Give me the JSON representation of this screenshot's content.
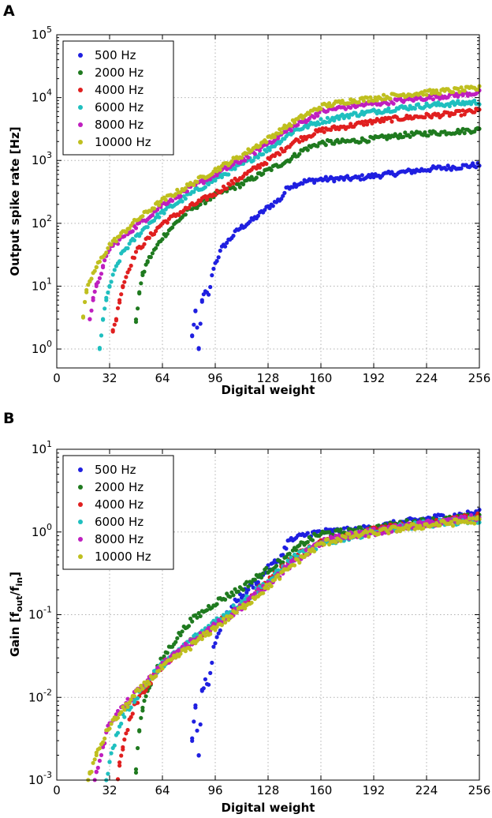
{
  "chart_data": [
    {
      "type": "scatter",
      "panel": "A",
      "xlabel": "Digital weight",
      "ylabel": "Output spike rate [Hz]",
      "yscale": "log",
      "xlim": [
        0,
        256
      ],
      "ylim": [
        0.5,
        100000
      ],
      "xticks": [
        0,
        32,
        64,
        96,
        128,
        160,
        192,
        224,
        256
      ],
      "yticks": [
        1,
        10,
        100,
        1000,
        10000,
        100000
      ],
      "ytick_exponents": [
        "0",
        "1",
        "2",
        "3",
        "4",
        "5"
      ],
      "ytick_base": "10",
      "grid": true,
      "legend": "top-left",
      "series": [
        {
          "name": "500 Hz",
          "color": "#1f1fe0",
          "start": 82,
          "values": [
            [
              82,
              1.6
            ],
            [
              84,
              4
            ],
            [
              86,
              1
            ],
            [
              88,
              6
            ],
            [
              90,
              8
            ],
            [
              92,
              7
            ],
            [
              93,
              10
            ],
            [
              95,
              20
            ],
            [
              100,
              40
            ],
            [
              110,
              80
            ],
            [
              120,
              120
            ],
            [
              128,
              180
            ],
            [
              136,
              250
            ],
            [
              140,
              380
            ],
            [
              150,
              460
            ],
            [
              160,
              500
            ],
            [
              180,
              520
            ],
            [
              190,
              560
            ],
            [
              200,
              600
            ],
            [
              210,
              650
            ],
            [
              220,
              700
            ],
            [
              230,
              750
            ],
            [
              240,
              780
            ],
            [
              256,
              850
            ]
          ]
        },
        {
          "name": "2000 Hz",
          "color": "#1f7a1f",
          "start": 48,
          "values": [
            [
              48,
              2.7
            ],
            [
              50,
              8
            ],
            [
              52,
              15
            ],
            [
              55,
              25
            ],
            [
              60,
              40
            ],
            [
              64,
              60
            ],
            [
              72,
              100
            ],
            [
              80,
              160
            ],
            [
              96,
              280
            ],
            [
              112,
              420
            ],
            [
              128,
              700
            ],
            [
              140,
              1000
            ],
            [
              150,
              1500
            ],
            [
              160,
              1900
            ],
            [
              176,
              2000
            ],
            [
              192,
              2200
            ],
            [
              208,
              2500
            ],
            [
              224,
              2700
            ],
            [
              240,
              2850
            ],
            [
              256,
              3100
            ]
          ]
        },
        {
          "name": "4000 Hz",
          "color": "#e01f1f",
          "start": 34,
          "values": [
            [
              34,
              2
            ],
            [
              36,
              3
            ],
            [
              38,
              6
            ],
            [
              40,
              10
            ],
            [
              44,
              20
            ],
            [
              48,
              35
            ],
            [
              56,
              60
            ],
            [
              64,
              100
            ],
            [
              80,
              180
            ],
            [
              96,
              300
            ],
            [
              112,
              550
            ],
            [
              128,
              1000
            ],
            [
              144,
              2000
            ],
            [
              160,
              3000
            ],
            [
              176,
              3500
            ],
            [
              192,
              4200
            ],
            [
              208,
              4700
            ],
            [
              224,
              5100
            ],
            [
              240,
              5500
            ],
            [
              256,
              6200
            ]
          ]
        },
        {
          "name": "6000 Hz",
          "color": "#1fbfbf",
          "start": 26,
          "values": [
            [
              26,
              1
            ],
            [
              28,
              3
            ],
            [
              30,
              6
            ],
            [
              32,
              10
            ],
            [
              36,
              20
            ],
            [
              40,
              35
            ],
            [
              48,
              60
            ],
            [
              56,
              100
            ],
            [
              64,
              150
            ],
            [
              80,
              280
            ],
            [
              96,
              500
            ],
            [
              112,
              850
            ],
            [
              128,
              1500
            ],
            [
              144,
              3000
            ],
            [
              160,
              4200
            ],
            [
              176,
              5200
            ],
            [
              192,
              6000
            ],
            [
              208,
              6800
            ],
            [
              224,
              7500
            ],
            [
              240,
              8000
            ],
            [
              256,
              8500
            ]
          ]
        },
        {
          "name": "8000 Hz",
          "color": "#bf1fbf",
          "start": 20,
          "values": [
            [
              20,
              3
            ],
            [
              22,
              6
            ],
            [
              24,
              10
            ],
            [
              28,
              20
            ],
            [
              32,
              40
            ],
            [
              40,
              60
            ],
            [
              48,
              90
            ],
            [
              56,
              130
            ],
            [
              64,
              200
            ],
            [
              80,
              350
            ],
            [
              96,
              600
            ],
            [
              112,
              1000
            ],
            [
              128,
              1900
            ],
            [
              144,
              3500
            ],
            [
              160,
              6000
            ],
            [
              176,
              7200
            ],
            [
              192,
              8000
            ],
            [
              208,
              9000
            ],
            [
              224,
              10000
            ],
            [
              240,
              11000
            ],
            [
              256,
              12000
            ]
          ]
        },
        {
          "name": "10000 Hz",
          "color": "#bfbf1f",
          "start": 16,
          "values": [
            [
              16,
              3.3
            ],
            [
              18,
              8
            ],
            [
              20,
              12
            ],
            [
              24,
              20
            ],
            [
              28,
              30
            ],
            [
              32,
              45
            ],
            [
              40,
              70
            ],
            [
              48,
              110
            ],
            [
              56,
              160
            ],
            [
              64,
              230
            ],
            [
              80,
              400
            ],
            [
              96,
              700
            ],
            [
              112,
              1200
            ],
            [
              128,
              2200
            ],
            [
              144,
              4200
            ],
            [
              160,
              7200
            ],
            [
              176,
              8800
            ],
            [
              192,
              9700
            ],
            [
              208,
              11000
            ],
            [
              224,
              12000
            ],
            [
              240,
              13000
            ],
            [
              256,
              14000
            ]
          ]
        }
      ]
    },
    {
      "type": "scatter",
      "panel": "B",
      "xlabel": "Digital weight",
      "ylabel_main": "Gain [f",
      "ylabel_sub1": "out",
      "ylabel_mid": "/f",
      "ylabel_sub2": "in",
      "ylabel_end": "]",
      "yscale": "log",
      "xlim": [
        0,
        256
      ],
      "ylim": [
        0.001,
        10
      ],
      "xticks": [
        0,
        32,
        64,
        96,
        128,
        160,
        192,
        224,
        256
      ],
      "yticks": [
        0.001,
        0.01,
        0.1,
        1,
        10
      ],
      "ytick_exponents": [
        "-3",
        "-2",
        "-1",
        "0",
        "1"
      ],
      "ytick_base": "10",
      "grid": true,
      "legend": "top-left",
      "series": [
        {
          "name": "500 Hz",
          "color": "#1f1fe0",
          "freq": 500
        },
        {
          "name": "2000 Hz",
          "color": "#1f7a1f",
          "freq": 2000
        },
        {
          "name": "4000 Hz",
          "color": "#e01f1f",
          "freq": 4000
        },
        {
          "name": "6000 Hz",
          "color": "#1fbfbf",
          "freq": 6000
        },
        {
          "name": "8000 Hz",
          "color": "#bf1fbf",
          "freq": 8000
        },
        {
          "name": "10000 Hz",
          "color": "#bfbf1f",
          "freq": 10000
        }
      ]
    }
  ]
}
